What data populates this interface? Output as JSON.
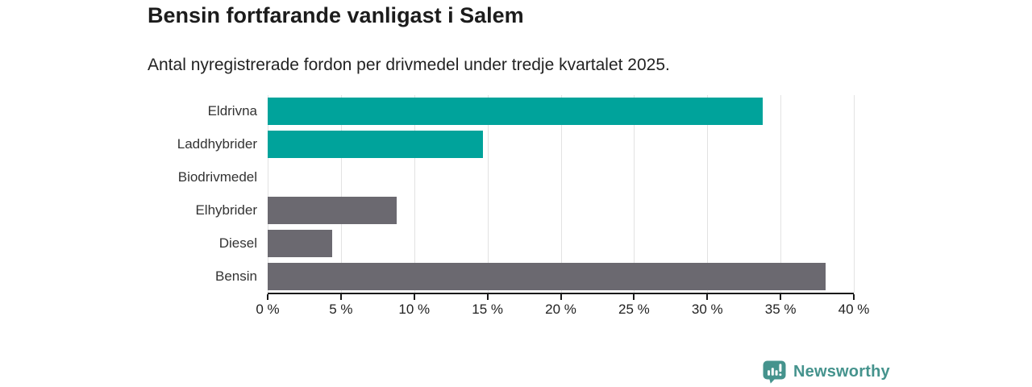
{
  "chart_data": {
    "type": "bar",
    "orientation": "horizontal",
    "title": "Bensin fortfarande vanligast i Salem",
    "subtitle": "Antal nyregistrerade fordon per drivmedel under tredje kvartalet 2025.",
    "categories": [
      "Eldrivna",
      "Laddhybrider",
      "Biodrivmedel",
      "Elhybrider",
      "Diesel",
      "Bensin"
    ],
    "values": [
      33.8,
      14.7,
      0,
      8.8,
      4.4,
      38.1
    ],
    "unit": "%",
    "bar_colors": [
      "#00a39b",
      "#00a39b",
      "#6b6970",
      "#6b6970",
      "#6b6970",
      "#6b6970"
    ],
    "xlim": [
      0,
      40
    ],
    "xticks": [
      0,
      5,
      10,
      15,
      20,
      25,
      30,
      35,
      40
    ],
    "xtick_suffix": " %",
    "xlabel": "",
    "ylabel": "",
    "grid": true,
    "legend": false
  },
  "branding": {
    "logo_text": "Newsworthy",
    "logo_color": "#45938d"
  },
  "colors": {
    "accent_teal": "#00a39b",
    "bar_gray": "#6b6970",
    "grid": "#e2e2e2",
    "axis": "#1a1a1a",
    "title_text": "#1c1c1c",
    "label_text": "#333333"
  }
}
